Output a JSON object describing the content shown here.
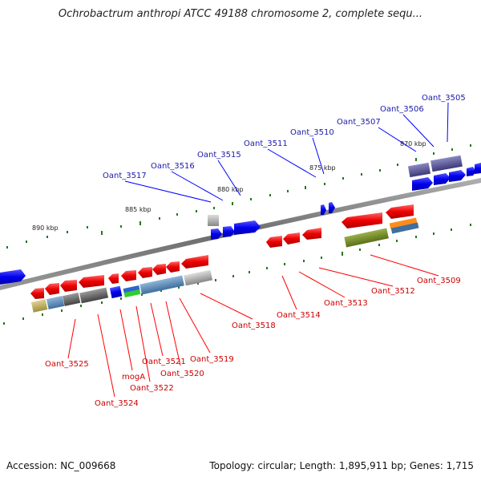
{
  "header": {
    "title": "Ochrobactrum anthropi ATCC 49188 chromosome 2, complete sequ..."
  },
  "footer": {
    "accession": "Accession: NC_009668",
    "summary": "Topology: circular; Length: 1,895,911 bp; Genes: 1,715"
  },
  "colors": {
    "forward": "#0000ff",
    "reverse": "#ff0000",
    "forward_label": "#1a1aaa",
    "reverse_label": "#cc0000",
    "backbone": "#7a7a7a",
    "tick": "#227722"
  },
  "ticks": [
    "890 kbp",
    "885 kbp",
    "880 kbp",
    "875 kbp",
    "870 kbp"
  ],
  "forward_labels": [
    "Oant_3505",
    "Oant_3506",
    "Oant_3507",
    "Oant_3510",
    "Oant_3511",
    "Oant_3515",
    "Oant_3516",
    "Oant_3517"
  ],
  "reverse_labels": [
    "Oant_3509",
    "Oant_3512",
    "Oant_3513",
    "Oant_3514",
    "Oant_3518",
    "Oant_3519",
    "Oant_3520",
    "Oant_3521",
    "Oant_3522",
    "mogA",
    "Oant_3524",
    "Oant_3525"
  ]
}
